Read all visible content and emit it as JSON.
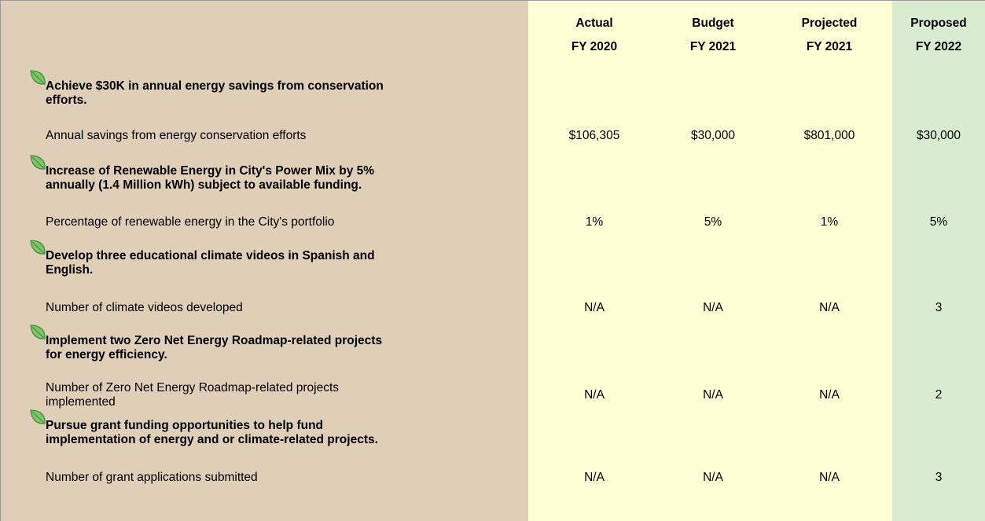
{
  "table": {
    "columns": [
      [
        "Actual",
        "FY 2020"
      ],
      [
        "Budget",
        "FY 2021"
      ],
      [
        "Projected",
        "FY 2021"
      ],
      [
        "Proposed",
        "FY 2022"
      ]
    ],
    "goals": [
      {
        "title": [
          "Achieve $30K in annual energy savings from conservation",
          "efforts."
        ],
        "measure": [
          "Annual savings from energy conservation efforts"
        ],
        "values": [
          "$106,305",
          "$30,000",
          "$801,000",
          "$30,000"
        ]
      },
      {
        "title": [
          "Increase of Renewable Energy in City's Power Mix by 5%",
          "annually (1.4 Million kWh) subject to available funding."
        ],
        "measure": [
          "Percentage of renewable energy in the City's portfolio"
        ],
        "values": [
          "1%",
          "5%",
          "1%",
          "5%"
        ]
      },
      {
        "title": [
          "Develop three educational climate videos in Spanish and",
          "English."
        ],
        "measure": [
          "Number of climate videos developed"
        ],
        "values": [
          "N/A",
          "N/A",
          "N/A",
          "3"
        ]
      },
      {
        "title": [
          "Implement two Zero Net Energy Roadmap-related projects",
          "for energy efficiency."
        ],
        "measure": [
          "Number of Zero Net Energy Roadmap-related projects",
          "implemented"
        ],
        "values": [
          "N/A",
          "N/A",
          "N/A",
          "2"
        ]
      },
      {
        "title": [
          "Pursue grant funding opportunities to help fund",
          "implementation of energy and or climate-related projects."
        ],
        "measure": [
          "Number of grant applications submitted"
        ],
        "values": [
          "N/A",
          "N/A",
          "N/A",
          "3"
        ]
      }
    ]
  }
}
